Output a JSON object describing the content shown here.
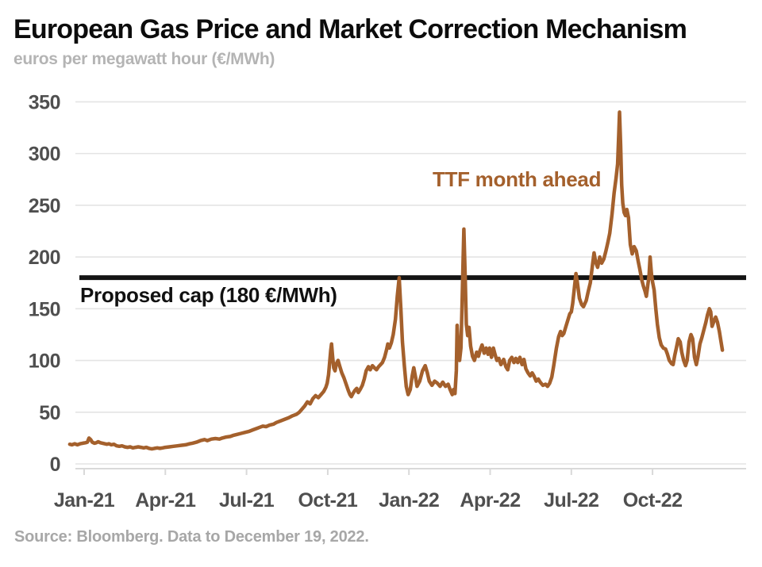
{
  "header": {
    "title": "European Gas Price and Market Correction Mechanism",
    "subtitle": "euros per megawatt hour (€/MWh)"
  },
  "footer": {
    "source": "Source: Bloomberg. Data to December 19, 2022."
  },
  "colors": {
    "series": "#a4602c",
    "series_label": "#a4602c",
    "cap_line": "#141414",
    "grid": "#e4e4e4",
    "axis": "#d9d9d9",
    "tick_label": "#4f4f4f",
    "background": "#ffffff"
  },
  "chart_data": {
    "type": "line",
    "title": "European Gas Price and Market Correction Mechanism",
    "ylabel": "euros per megawatt hour (€/MWh)",
    "ylim": [
      0,
      362
    ],
    "grid": true,
    "y_ticks": [
      0,
      50,
      100,
      150,
      200,
      250,
      300,
      350
    ],
    "x_ticks": [
      {
        "m": 0,
        "label": "Jan-21"
      },
      {
        "m": 3,
        "label": "Apr-21"
      },
      {
        "m": 6,
        "label": "Jul-21"
      },
      {
        "m": 9,
        "label": "Oct-21"
      },
      {
        "m": 12,
        "label": "Jan-22"
      },
      {
        "m": 15,
        "label": "Apr-22"
      },
      {
        "m": 18,
        "label": "Jul-22"
      },
      {
        "m": 21,
        "label": "Oct-22"
      }
    ],
    "x_unit": "months since Jan-2021 tick (data runs mid-Dec-2020 to Dec 19, 2022)",
    "annotations": {
      "series_label": "TTF month ahead",
      "cap_label": "Proposed cap (180 €/MWh)",
      "cap_value": 180
    },
    "series": [
      {
        "name": "TTF month ahead",
        "units": "€/MWh",
        "points": [
          [
            -0.53,
            19
          ],
          [
            -0.45,
            18.5
          ],
          [
            -0.35,
            19.5
          ],
          [
            -0.25,
            18.5
          ],
          [
            -0.15,
            19.5
          ],
          [
            -0.05,
            20
          ],
          [
            0.05,
            20.5
          ],
          [
            0.12,
            21
          ],
          [
            0.18,
            25
          ],
          [
            0.24,
            23.5
          ],
          [
            0.3,
            21
          ],
          [
            0.38,
            20
          ],
          [
            0.45,
            20.5
          ],
          [
            0.52,
            21.5
          ],
          [
            0.6,
            20.5
          ],
          [
            0.68,
            20
          ],
          [
            0.76,
            19.5
          ],
          [
            0.84,
            19
          ],
          [
            0.92,
            19.5
          ],
          [
            1.0,
            18.5
          ],
          [
            1.1,
            19
          ],
          [
            1.2,
            17.5
          ],
          [
            1.3,
            17
          ],
          [
            1.4,
            17.5
          ],
          [
            1.5,
            16.5
          ],
          [
            1.6,
            16
          ],
          [
            1.7,
            16.5
          ],
          [
            1.8,
            15.5
          ],
          [
            1.9,
            16
          ],
          [
            2.0,
            16.5
          ],
          [
            2.1,
            16
          ],
          [
            2.2,
            15.5
          ],
          [
            2.3,
            16
          ],
          [
            2.4,
            15
          ],
          [
            2.5,
            14.5
          ],
          [
            2.6,
            15
          ],
          [
            2.7,
            15.5
          ],
          [
            2.8,
            15
          ],
          [
            2.9,
            15.5
          ],
          [
            3.0,
            16
          ],
          [
            3.15,
            16.5
          ],
          [
            3.3,
            17
          ],
          [
            3.45,
            17.5
          ],
          [
            3.6,
            18
          ],
          [
            3.75,
            18.5
          ],
          [
            3.9,
            19.5
          ],
          [
            4.0,
            20
          ],
          [
            4.15,
            21
          ],
          [
            4.3,
            22.5
          ],
          [
            4.45,
            23.5
          ],
          [
            4.55,
            22.5
          ],
          [
            4.7,
            24
          ],
          [
            4.85,
            24.5
          ],
          [
            5.0,
            24
          ],
          [
            5.1,
            25
          ],
          [
            5.25,
            26
          ],
          [
            5.4,
            26.5
          ],
          [
            5.5,
            27.5
          ],
          [
            5.65,
            28.5
          ],
          [
            5.8,
            29.5
          ],
          [
            5.95,
            30.5
          ],
          [
            6.1,
            31.5
          ],
          [
            6.25,
            33
          ],
          [
            6.4,
            34.5
          ],
          [
            6.5,
            35.5
          ],
          [
            6.6,
            36.5
          ],
          [
            6.72,
            36
          ],
          [
            6.85,
            37.5
          ],
          [
            7.0,
            38.5
          ],
          [
            7.1,
            40
          ],
          [
            7.25,
            41.5
          ],
          [
            7.4,
            43
          ],
          [
            7.55,
            44.5
          ],
          [
            7.7,
            46.5
          ],
          [
            7.85,
            48
          ],
          [
            7.95,
            50
          ],
          [
            8.05,
            53
          ],
          [
            8.15,
            56
          ],
          [
            8.25,
            60
          ],
          [
            8.35,
            58
          ],
          [
            8.45,
            63
          ],
          [
            8.55,
            66
          ],
          [
            8.65,
            64
          ],
          [
            8.75,
            67
          ],
          [
            8.85,
            70
          ],
          [
            8.93,
            74
          ],
          [
            8.98,
            78
          ],
          [
            9.03,
            86
          ],
          [
            9.07,
            98
          ],
          [
            9.11,
            110
          ],
          [
            9.14,
            116
          ],
          [
            9.18,
            104
          ],
          [
            9.22,
            93
          ],
          [
            9.27,
            90
          ],
          [
            9.32,
            97
          ],
          [
            9.38,
            100
          ],
          [
            9.45,
            94
          ],
          [
            9.52,
            88
          ],
          [
            9.6,
            83
          ],
          [
            9.68,
            77
          ],
          [
            9.76,
            71
          ],
          [
            9.82,
            67
          ],
          [
            9.87,
            65
          ],
          [
            9.93,
            68
          ],
          [
            10.0,
            71
          ],
          [
            10.07,
            73
          ],
          [
            10.13,
            69
          ],
          [
            10.2,
            72
          ],
          [
            10.28,
            76
          ],
          [
            10.35,
            82
          ],
          [
            10.42,
            90
          ],
          [
            10.5,
            94
          ],
          [
            10.57,
            91
          ],
          [
            10.65,
            95
          ],
          [
            10.72,
            93
          ],
          [
            10.8,
            91
          ],
          [
            10.88,
            94
          ],
          [
            10.95,
            96
          ],
          [
            11.02,
            98
          ],
          [
            11.1,
            103
          ],
          [
            11.17,
            110
          ],
          [
            11.22,
            116
          ],
          [
            11.28,
            112
          ],
          [
            11.35,
            117
          ],
          [
            11.42,
            125
          ],
          [
            11.5,
            140
          ],
          [
            11.57,
            162
          ],
          [
            11.64,
            180
          ],
          [
            11.7,
            150
          ],
          [
            11.76,
            118
          ],
          [
            11.83,
            95
          ],
          [
            11.9,
            75
          ],
          [
            11.97,
            67
          ],
          [
            12.05,
            72
          ],
          [
            12.12,
            85
          ],
          [
            12.18,
            93
          ],
          [
            12.25,
            83
          ],
          [
            12.3,
            75
          ],
          [
            12.4,
            80
          ],
          [
            12.5,
            90
          ],
          [
            12.6,
            95
          ],
          [
            12.68,
            88
          ],
          [
            12.75,
            80
          ],
          [
            12.85,
            76
          ],
          [
            12.95,
            80
          ],
          [
            13.05,
            78
          ],
          [
            13.15,
            75
          ],
          [
            13.25,
            79
          ],
          [
            13.35,
            75
          ],
          [
            13.45,
            77
          ],
          [
            13.52,
            72
          ],
          [
            13.6,
            67
          ],
          [
            13.65,
            72
          ],
          [
            13.7,
            68
          ],
          [
            13.75,
            90
          ],
          [
            13.78,
            134
          ],
          [
            13.82,
            112
          ],
          [
            13.87,
            100
          ],
          [
            13.92,
            112
          ],
          [
            13.96,
            150
          ],
          [
            14.0,
            196
          ],
          [
            14.03,
            227
          ],
          [
            14.08,
            180
          ],
          [
            14.12,
            135
          ],
          [
            14.17,
            124
          ],
          [
            14.22,
            132
          ],
          [
            14.28,
            114
          ],
          [
            14.35,
            104
          ],
          [
            14.42,
            100
          ],
          [
            14.5,
            108
          ],
          [
            14.57,
            104
          ],
          [
            14.63,
            110
          ],
          [
            14.7,
            115
          ],
          [
            14.78,
            107
          ],
          [
            14.85,
            112
          ],
          [
            14.92,
            106
          ],
          [
            14.98,
            112
          ],
          [
            15.05,
            103
          ],
          [
            15.12,
            112
          ],
          [
            15.18,
            106
          ],
          [
            15.25,
            100
          ],
          [
            15.32,
            102
          ],
          [
            15.4,
            96
          ],
          [
            15.5,
            101
          ],
          [
            15.58,
            94
          ],
          [
            15.65,
            91
          ],
          [
            15.72,
            100
          ],
          [
            15.8,
            103
          ],
          [
            15.88,
            98
          ],
          [
            15.95,
            102
          ],
          [
            16.02,
            98
          ],
          [
            16.1,
            103
          ],
          [
            16.18,
            96
          ],
          [
            16.25,
            101
          ],
          [
            16.32,
            92
          ],
          [
            16.4,
            88
          ],
          [
            16.48,
            85
          ],
          [
            16.55,
            88
          ],
          [
            16.62,
            85
          ],
          [
            16.7,
            80
          ],
          [
            16.78,
            82
          ],
          [
            16.85,
            79
          ],
          [
            16.95,
            76
          ],
          [
            17.05,
            77
          ],
          [
            17.12,
            75
          ],
          [
            17.2,
            78
          ],
          [
            17.28,
            84
          ],
          [
            17.35,
            95
          ],
          [
            17.45,
            112
          ],
          [
            17.53,
            123
          ],
          [
            17.6,
            128
          ],
          [
            17.66,
            124
          ],
          [
            17.72,
            126
          ],
          [
            17.8,
            133
          ],
          [
            17.87,
            139
          ],
          [
            17.94,
            145
          ],
          [
            18.0,
            147
          ],
          [
            18.05,
            155
          ],
          [
            18.12,
            172
          ],
          [
            18.17,
            184
          ],
          [
            18.22,
            176
          ],
          [
            18.3,
            160
          ],
          [
            18.38,
            154
          ],
          [
            18.45,
            152
          ],
          [
            18.55,
            158
          ],
          [
            18.62,
            166
          ],
          [
            18.7,
            175
          ],
          [
            18.78,
            192
          ],
          [
            18.84,
            204
          ],
          [
            18.9,
            195
          ],
          [
            18.97,
            190
          ],
          [
            19.05,
            200
          ],
          [
            19.12,
            194
          ],
          [
            19.2,
            198
          ],
          [
            19.28,
            206
          ],
          [
            19.35,
            214
          ],
          [
            19.42,
            223
          ],
          [
            19.5,
            241
          ],
          [
            19.58,
            262
          ],
          [
            19.65,
            276
          ],
          [
            19.71,
            290
          ],
          [
            19.75,
            318
          ],
          [
            19.78,
            340
          ],
          [
            19.82,
            308
          ],
          [
            19.86,
            270
          ],
          [
            19.9,
            252
          ],
          [
            19.95,
            243
          ],
          [
            20.0,
            240
          ],
          [
            20.05,
            246
          ],
          [
            20.11,
            238
          ],
          [
            20.18,
            212
          ],
          [
            20.25,
            203
          ],
          [
            20.32,
            210
          ],
          [
            20.4,
            206
          ],
          [
            20.47,
            196
          ],
          [
            20.53,
            188
          ],
          [
            20.6,
            178
          ],
          [
            20.66,
            172
          ],
          [
            20.72,
            167
          ],
          [
            20.77,
            162
          ],
          [
            20.82,
            172
          ],
          [
            20.87,
            182
          ],
          [
            20.91,
            200
          ],
          [
            20.96,
            184
          ],
          [
            21.0,
            176
          ],
          [
            21.06,
            168
          ],
          [
            21.12,
            150
          ],
          [
            21.18,
            135
          ],
          [
            21.25,
            122
          ],
          [
            21.32,
            115
          ],
          [
            21.4,
            112
          ],
          [
            21.48,
            111
          ],
          [
            21.55,
            106
          ],
          [
            21.62,
            100
          ],
          [
            21.7,
            97
          ],
          [
            21.76,
            96
          ],
          [
            21.82,
            105
          ],
          [
            21.88,
            112
          ],
          [
            21.95,
            121
          ],
          [
            22.02,
            118
          ],
          [
            22.08,
            108
          ],
          [
            22.15,
            100
          ],
          [
            22.22,
            95
          ],
          [
            22.28,
            100
          ],
          [
            22.35,
            118
          ],
          [
            22.42,
            125
          ],
          [
            22.48,
            121
          ],
          [
            22.55,
            103
          ],
          [
            22.62,
            96
          ],
          [
            22.68,
            104
          ],
          [
            22.75,
            116
          ],
          [
            22.82,
            122
          ],
          [
            22.9,
            130
          ],
          [
            22.97,
            137
          ],
          [
            23.03,
            144
          ],
          [
            23.1,
            150
          ],
          [
            23.15,
            147
          ],
          [
            23.2,
            133
          ],
          [
            23.27,
            138
          ],
          [
            23.33,
            142
          ],
          [
            23.4,
            137
          ],
          [
            23.47,
            128
          ],
          [
            23.53,
            118
          ],
          [
            23.58,
            110
          ]
        ]
      }
    ]
  }
}
